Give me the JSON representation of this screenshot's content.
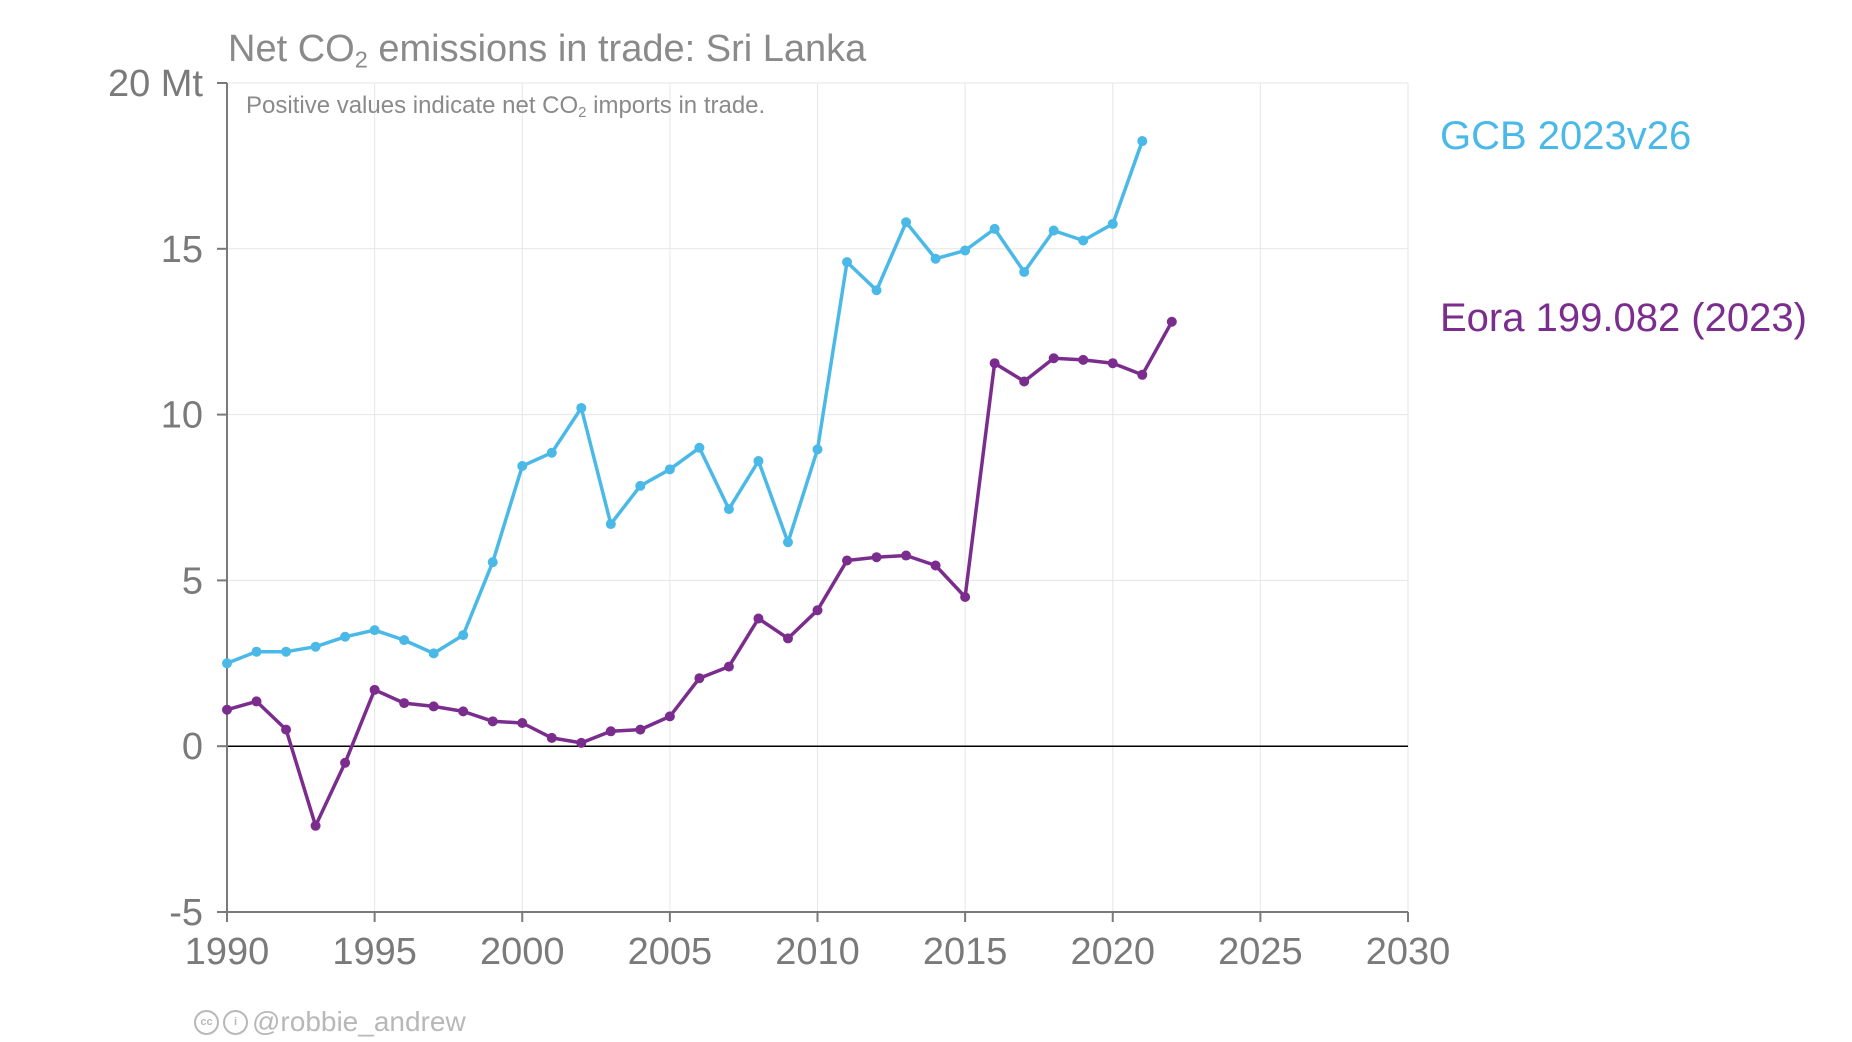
{
  "chart_data": {
    "type": "line",
    "title_prefix": "Net CO",
    "title_sub": "2",
    "title_suffix": " emissions in trade: Sri Lanka",
    "subtitle_prefix": "Positive values indicate net CO",
    "subtitle_sub": "2",
    "subtitle_suffix": " imports in trade.",
    "y_unit_label": "20 Mt",
    "xlim": [
      1990,
      2030
    ],
    "ylim": [
      -5,
      20
    ],
    "x_ticks": [
      "1990",
      "1995",
      "2000",
      "2005",
      "2010",
      "2015",
      "2020",
      "2025",
      "2030"
    ],
    "y_ticks": [
      "-5",
      "0",
      "5",
      "10",
      "15",
      "20 Mt"
    ],
    "grid": true,
    "legend_placement": "right",
    "series": [
      {
        "name": "GCB 2023v26",
        "color": "#4ab9e8",
        "x": [
          1990,
          1991,
          1992,
          1993,
          1994,
          1995,
          1996,
          1997,
          1998,
          1999,
          2000,
          2001,
          2002,
          2003,
          2004,
          2005,
          2006,
          2007,
          2008,
          2009,
          2010,
          2011,
          2012,
          2013,
          2014,
          2015,
          2016,
          2017,
          2018,
          2019,
          2020,
          2021
        ],
        "values": [
          2.5,
          2.85,
          2.85,
          3.0,
          3.3,
          3.5,
          3.2,
          2.8,
          3.35,
          5.55,
          8.45,
          8.85,
          10.2,
          6.7,
          7.85,
          8.35,
          9.0,
          7.15,
          8.6,
          6.15,
          8.95,
          14.6,
          13.75,
          15.8,
          14.7,
          14.95,
          15.6,
          14.3,
          15.55,
          15.25,
          15.75,
          18.25
        ]
      },
      {
        "name": "Eora 199.082 (2023)",
        "color": "#7b2d8e",
        "x": [
          1990,
          1991,
          1992,
          1993,
          1994,
          1995,
          1996,
          1997,
          1998,
          1999,
          2000,
          2001,
          2002,
          2003,
          2004,
          2005,
          2006,
          2007,
          2008,
          2009,
          2010,
          2011,
          2012,
          2013,
          2014,
          2015,
          2016,
          2017,
          2018,
          2019,
          2020,
          2021,
          2022
        ],
        "values": [
          1.1,
          1.35,
          0.5,
          -2.4,
          -0.5,
          1.7,
          1.3,
          1.2,
          1.05,
          0.75,
          0.7,
          0.25,
          0.1,
          0.45,
          0.5,
          0.9,
          2.05,
          2.4,
          3.85,
          3.25,
          4.1,
          5.6,
          5.7,
          5.75,
          5.45,
          4.5,
          11.55,
          11.0,
          11.7,
          11.65,
          11.55,
          11.2,
          12.8
        ]
      }
    ]
  },
  "credit": {
    "handle": "@robbie_andrew",
    "icons": [
      "cc-icon",
      "by-icon"
    ]
  },
  "colors": {
    "axis": "#7a7a7a",
    "grid": "#e6e6e6",
    "zero_line": "#000000",
    "text": "#8a8a8a",
    "credit": "#b8b8b8"
  }
}
